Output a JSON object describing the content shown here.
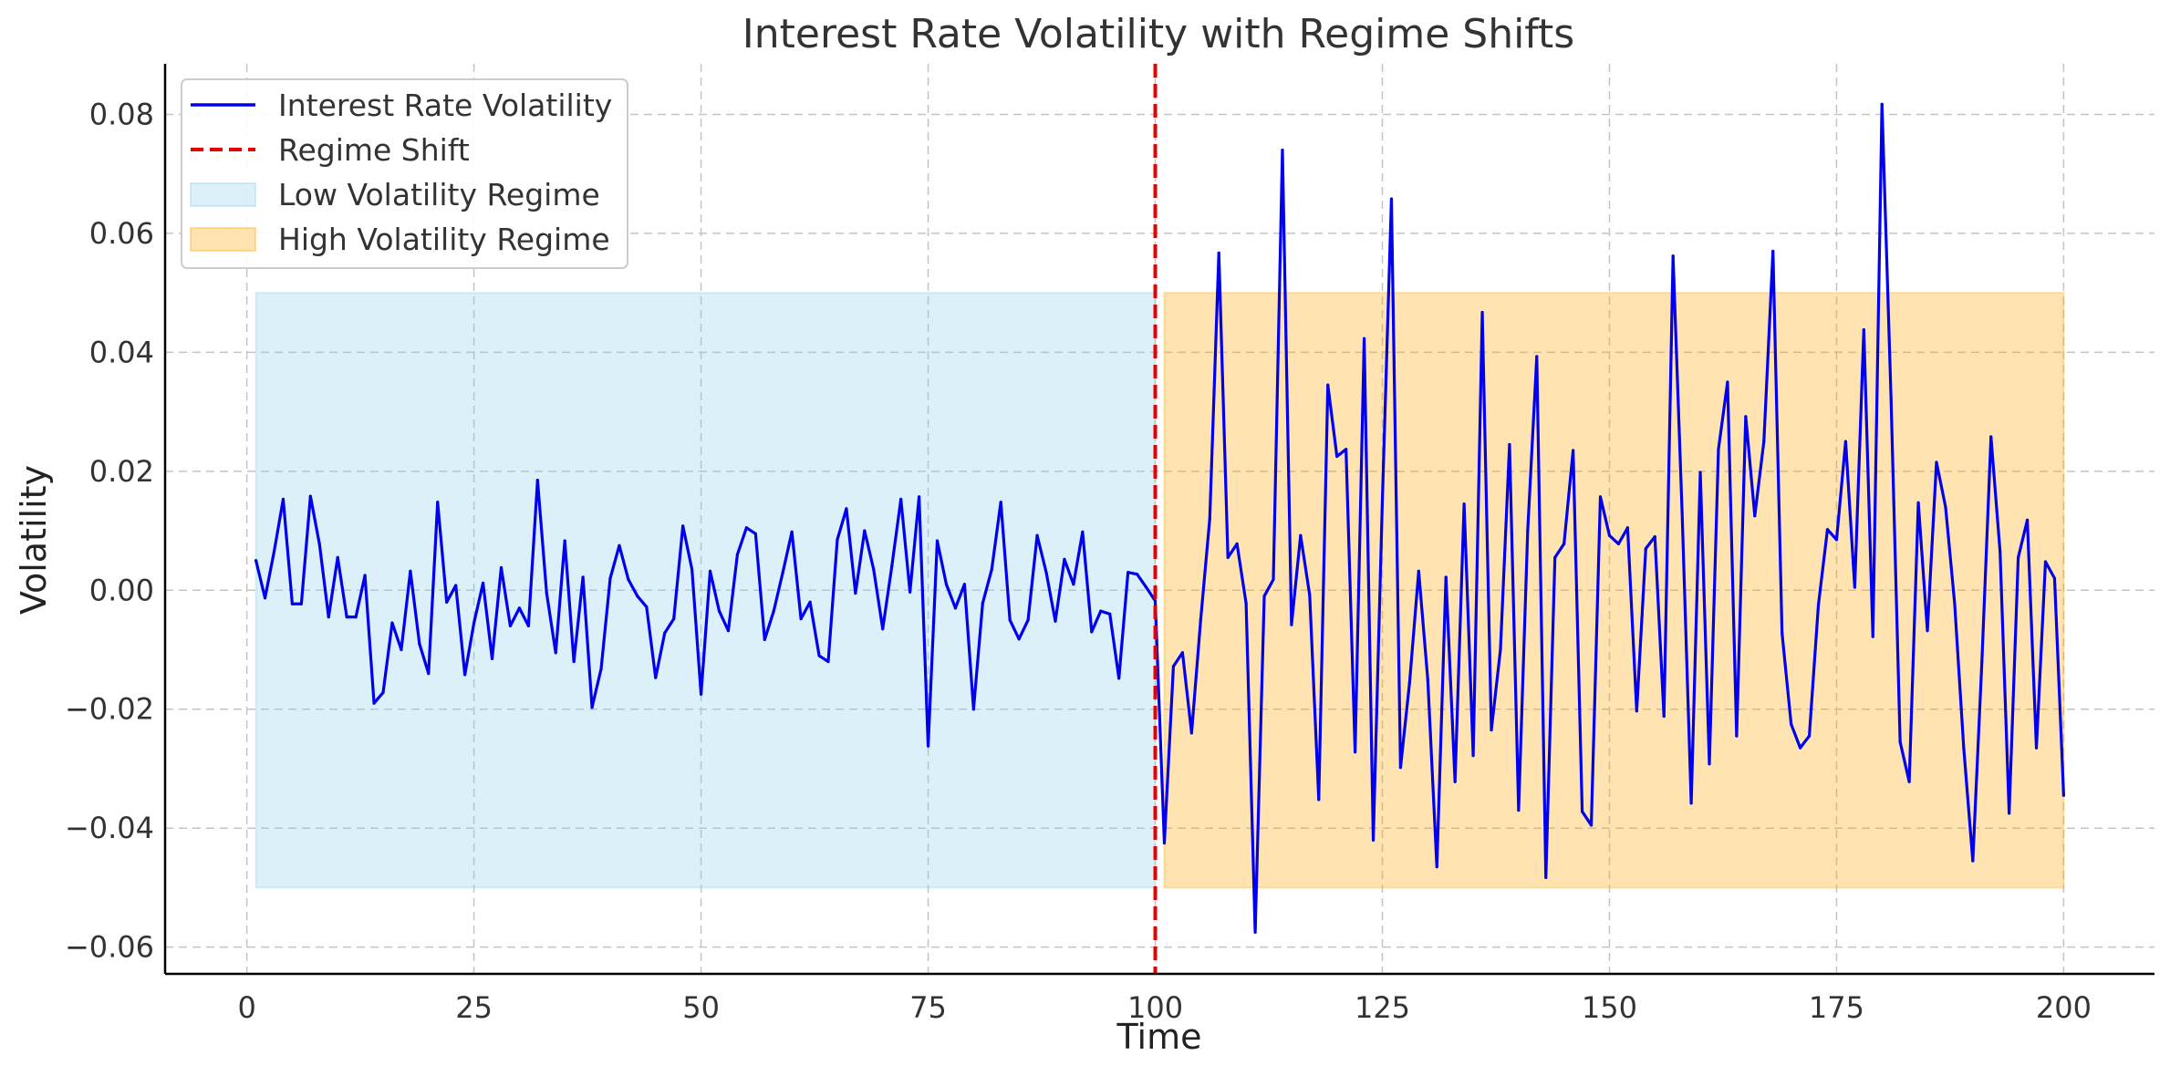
{
  "chart_data": {
    "type": "line",
    "title": "Interest Rate Volatility with Regime Shifts",
    "xlabel": "Time",
    "ylabel": "Volatility",
    "xlim": [
      -9,
      210
    ],
    "ylim": [
      -0.0645,
      0.0885
    ],
    "xticks": [
      0,
      25,
      50,
      75,
      100,
      125,
      150,
      175,
      200
    ],
    "yticks": [
      -0.06,
      -0.04,
      -0.02,
      0.0,
      0.02,
      0.04,
      0.06,
      0.08
    ],
    "xtick_labels": [
      "0",
      "25",
      "50",
      "75",
      "100",
      "125",
      "150",
      "175",
      "200"
    ],
    "ytick_labels": [
      "−0.06",
      "−0.04",
      "−0.02",
      "0.00",
      "0.02",
      "0.04",
      "0.06",
      "0.08"
    ],
    "grid": true,
    "legend_position": "top-left",
    "series": [
      {
        "name": "Interest Rate Volatility",
        "color": "#0000ee",
        "x_start": 1,
        "values": [
          0.005,
          -0.0013,
          0.0065,
          0.0153,
          -0.0023,
          -0.0023,
          0.0158,
          0.0077,
          -0.0045,
          0.0055,
          -0.0045,
          -0.0045,
          0.0025,
          -0.019,
          -0.0172,
          -0.0055,
          -0.01,
          0.0032,
          -0.009,
          -0.014,
          0.0148,
          -0.002,
          0.0008,
          -0.0142,
          -0.0055,
          0.0012,
          -0.0115,
          0.0038,
          -0.006,
          -0.003,
          -0.006,
          0.0185,
          -0.0005,
          -0.0105,
          0.0083,
          -0.012,
          0.0022,
          -0.0197,
          -0.0132,
          0.002,
          0.0075,
          0.0018,
          -0.001,
          -0.0028,
          -0.0147,
          -0.0072,
          -0.0048,
          0.0108,
          0.0035,
          -0.0175,
          0.0032,
          -0.0035,
          -0.0068,
          0.006,
          0.0105,
          0.0095,
          -0.0083,
          -0.0035,
          0.003,
          0.0098,
          -0.0048,
          -0.002,
          -0.011,
          -0.012,
          0.0085,
          0.0137,
          -0.0005,
          0.01,
          0.0035,
          -0.0065,
          0.004,
          0.0153,
          -0.0003,
          0.0157,
          -0.0262,
          0.0083,
          0.001,
          -0.003,
          0.001,
          -0.02,
          -0.0022,
          0.0035,
          0.0148,
          -0.005,
          -0.0082,
          -0.005,
          0.0092,
          0.003,
          -0.0052,
          0.0052,
          0.001,
          0.0098,
          -0.007,
          -0.0035,
          -0.004,
          -0.0148,
          0.003,
          0.0027,
          0.0005,
          -0.0018,
          -0.0425,
          -0.0128,
          -0.0105,
          -0.024,
          -0.005,
          0.012,
          0.0567,
          0.0055,
          0.0078,
          -0.0022,
          -0.0575,
          -0.001,
          0.0018,
          0.074,
          -0.0058,
          0.0092,
          -0.0008,
          -0.0352,
          0.0345,
          0.0225,
          0.0237,
          -0.0272,
          0.0423,
          -0.042,
          0.015,
          0.0658,
          -0.0298,
          -0.0155,
          0.0032,
          -0.015,
          -0.0465,
          0.0022,
          -0.0322,
          0.0145,
          -0.0278,
          0.0467,
          -0.0235,
          -0.01,
          0.0245,
          -0.037,
          0.01,
          0.0393,
          -0.0483,
          0.0055,
          0.0078,
          0.0235,
          -0.0372,
          -0.0395,
          0.0157,
          0.0092,
          0.0078,
          0.0105,
          -0.0203,
          0.007,
          0.009,
          -0.0212,
          0.0562,
          0.013,
          -0.0358,
          0.0198,
          -0.0292,
          0.0237,
          0.035,
          -0.0245,
          0.0292,
          0.0125,
          0.025,
          0.057,
          -0.0072,
          -0.0225,
          -0.0265,
          -0.0245,
          -0.0025,
          0.0102,
          0.0085,
          0.025,
          0.0005,
          0.0438,
          -0.0078,
          0.0817,
          0.0322,
          -0.0255,
          -0.0322,
          0.0147,
          -0.0068,
          0.0215,
          0.014,
          -0.0022,
          -0.0265,
          -0.0455,
          -0.012,
          0.0258,
          0.0065,
          -0.0375,
          0.0055,
          0.0118,
          -0.0265,
          0.0048,
          0.002,
          -0.0345
        ]
      }
    ],
    "regime_shift": {
      "name": "Regime Shift",
      "x": 100,
      "color": "#e60000"
    },
    "regions": [
      {
        "name": "Low Volatility Regime",
        "x_start": 1,
        "x_end": 100,
        "y_start": -0.05,
        "y_end": 0.05,
        "color": "#87ceeb"
      },
      {
        "name": "High Volatility Regime",
        "x_start": 101,
        "x_end": 200,
        "y_start": -0.05,
        "y_end": 0.05,
        "color": "#ffa500"
      }
    ]
  }
}
